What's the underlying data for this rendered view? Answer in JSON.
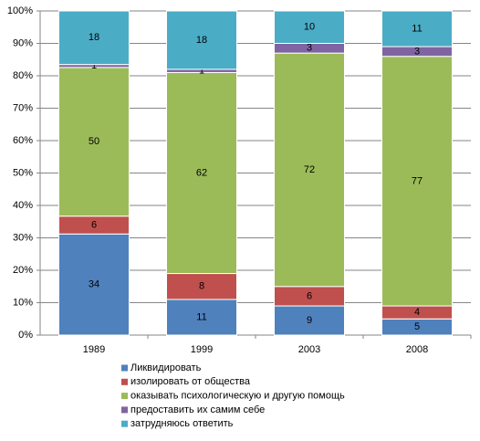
{
  "chart_data": {
    "type": "bar",
    "stack": "percent",
    "categories": [
      "1989",
      "1999",
      "2003",
      "2008"
    ],
    "series": [
      {
        "name": "Ликвидировать",
        "color": "#4f81bd",
        "values": [
          34,
          11,
          9,
          5
        ]
      },
      {
        "name": "изолировать от общества",
        "color": "#c0504d",
        "values": [
          6,
          8,
          6,
          4
        ]
      },
      {
        "name": "оказывать психологическую и другую помощь",
        "color": "#9bbb59",
        "values": [
          50,
          62,
          72,
          77
        ]
      },
      {
        "name": "предоставить их самим себе",
        "color": "#8064a2",
        "values": [
          1,
          1,
          3,
          3
        ]
      },
      {
        "name": "затрудняюсь ответить",
        "color": "#4bacc6",
        "values": [
          18,
          18,
          10,
          11
        ]
      }
    ],
    "ylim": [
      0,
      100
    ],
    "yticks": [
      {
        "value": 0,
        "label": "0%"
      },
      {
        "value": 10,
        "label": "10%"
      },
      {
        "value": 20,
        "label": "20%"
      },
      {
        "value": 30,
        "label": "30%"
      },
      {
        "value": 40,
        "label": "40%"
      },
      {
        "value": 50,
        "label": "50%"
      },
      {
        "value": 60,
        "label": "60%"
      },
      {
        "value": 70,
        "label": "70%"
      },
      {
        "value": 80,
        "label": "80%"
      },
      {
        "value": 90,
        "label": "90%"
      },
      {
        "value": 100,
        "label": "100%"
      }
    ],
    "grid": true,
    "legend": "bottom"
  }
}
